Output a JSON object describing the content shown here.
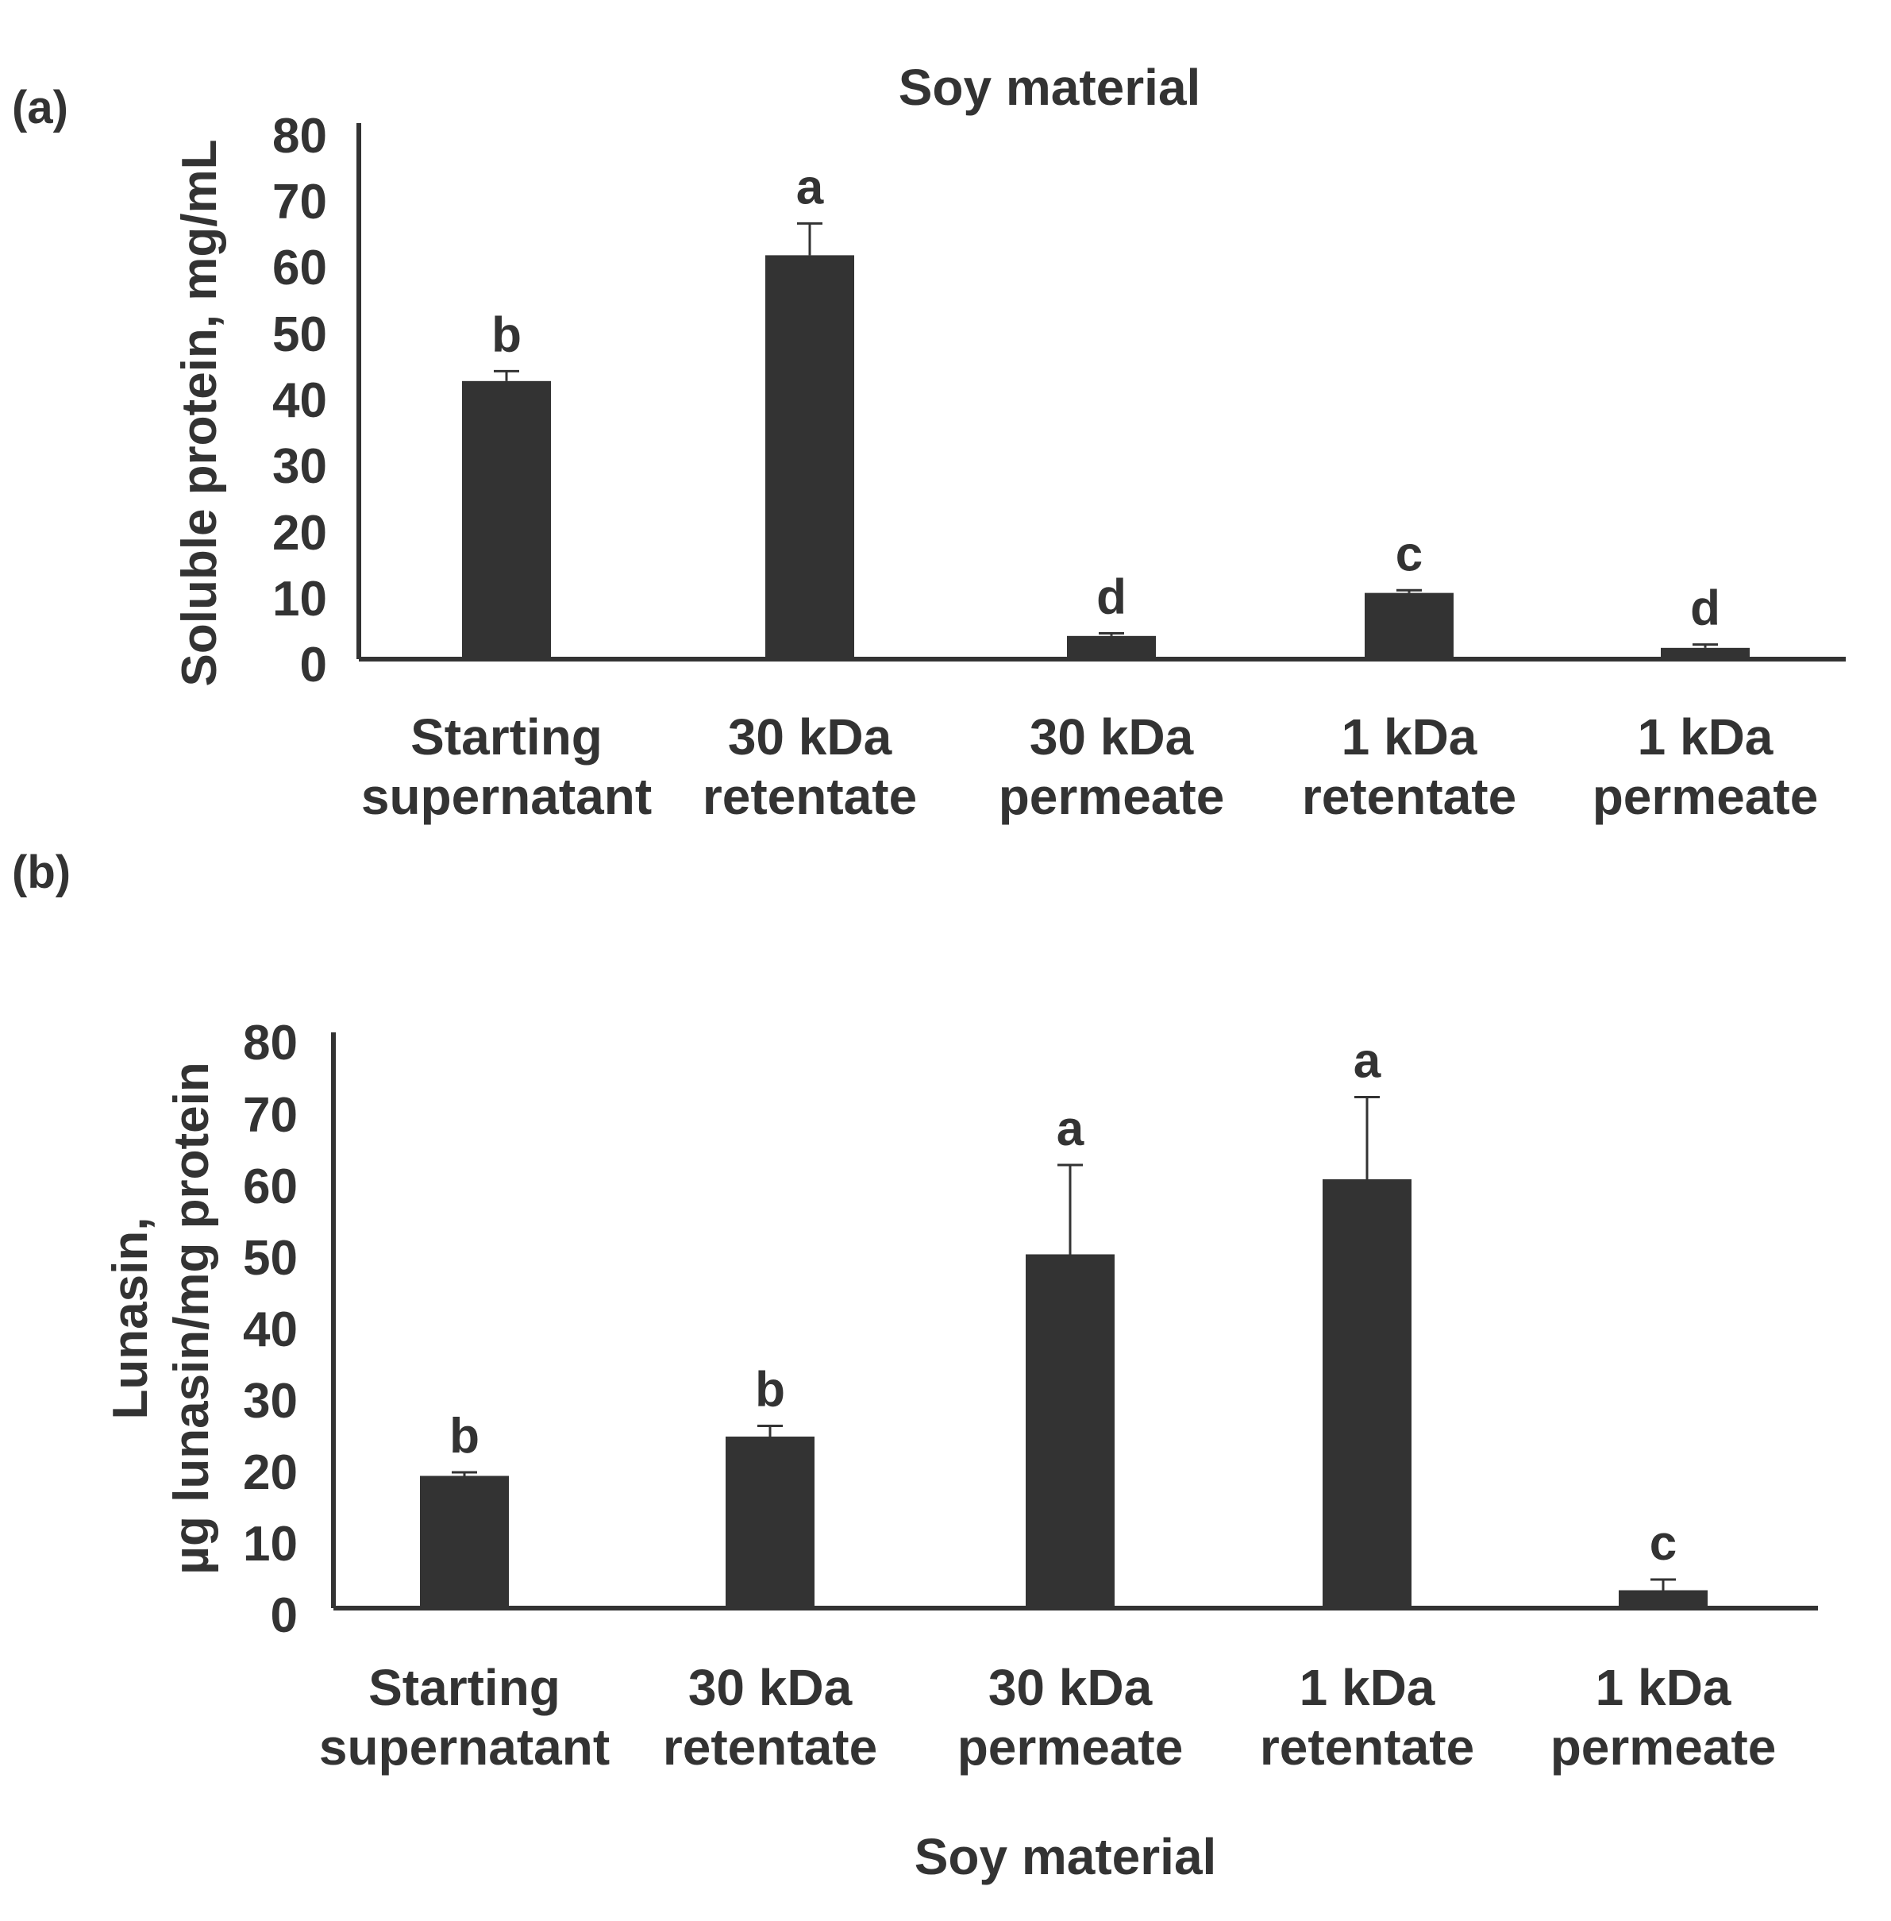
{
  "colors": {
    "bar": "#333333",
    "axis": "#333333",
    "text": "#333333",
    "background": "#ffffff"
  },
  "chart_data": [
    {
      "panel_label": "(a)",
      "type": "bar",
      "title": "Soy material",
      "xlabel": "",
      "ylabel": "Soluble protein, mg/mL",
      "ylim": [
        0,
        80
      ],
      "yticks": [
        "80",
        "70",
        "60",
        "50",
        "40",
        "30",
        "20",
        "10",
        "0"
      ],
      "categories": [
        [
          "Starting",
          "supernatant"
        ],
        [
          "30 kDa",
          "retentate"
        ],
        [
          "30 kDa",
          "permeate"
        ],
        [
          "1 kDa",
          "retentate"
        ],
        [
          "1 kDa",
          "permeate"
        ]
      ],
      "values": [
        42,
        61,
        3.5,
        10,
        1.7
      ],
      "errors": [
        1.5,
        4.8,
        0.4,
        0.4,
        0.5
      ],
      "significance": [
        "b",
        "a",
        "d",
        "c",
        "d"
      ],
      "grid": false
    },
    {
      "panel_label": "(b)",
      "type": "bar",
      "title": "",
      "xlabel": "Soy material",
      "ylabel_lines": [
        "Lunasin,",
        "µg lunasin/mg protein"
      ],
      "ylim": [
        0,
        80
      ],
      "yticks": [
        "80",
        "70",
        "60",
        "50",
        "40",
        "30",
        "20",
        "10",
        "0"
      ],
      "categories": [
        [
          "Starting",
          "supernatant"
        ],
        [
          "30 kDa",
          "retentate"
        ],
        [
          "30 kDa",
          "permeate"
        ],
        [
          "1 kDa",
          "retentate"
        ],
        [
          "1 kDa",
          "permeate"
        ]
      ],
      "values": [
        18.5,
        24,
        49.5,
        60,
        2.5
      ],
      "errors": [
        0.5,
        1.5,
        12.5,
        11.5,
        1.5
      ],
      "significance": [
        "b",
        "b",
        "a",
        "a",
        "c"
      ],
      "grid": false
    }
  ]
}
